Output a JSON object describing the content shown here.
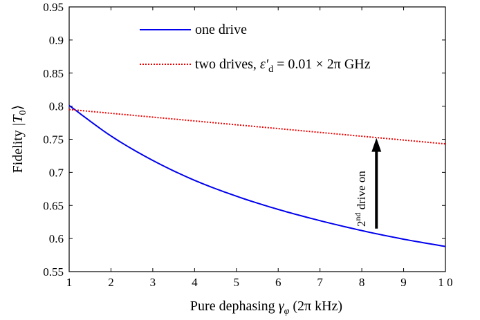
{
  "chart_data": {
    "type": "line",
    "xlabel": "Pure dephasing γ_φ (2π kHz)",
    "xlabel_parts": {
      "text": "Pure dephasing ",
      "symbol": "γ",
      "sub": "φ",
      "unit": " (2π kHz)"
    },
    "ylabel": "Fidelity |T0⟩",
    "ylabel_parts": {
      "text": "Fidelity ",
      "state": "|T",
      "sub": "0",
      "close": "⟩"
    },
    "xlim": [
      1,
      10
    ],
    "ylim": [
      0.55,
      0.95
    ],
    "xticks": [
      1,
      2,
      3,
      4,
      5,
      6,
      7,
      8,
      9,
      10
    ],
    "xtick_labels": [
      "1",
      "2",
      "3",
      "4",
      "5",
      "6",
      "7",
      "8",
      "9",
      "1 0"
    ],
    "yticks": [
      0.55,
      0.6,
      0.65,
      0.7,
      0.75,
      0.8,
      0.85,
      0.9,
      0.95
    ],
    "ytick_labels": [
      "0.55",
      "0.6",
      "0.65",
      "0.7",
      "0.75",
      "0.8",
      "0.85",
      "0.9",
      "0.95"
    ],
    "grid": false,
    "legend_position": "top-right",
    "series": [
      {
        "name": "one drive",
        "color": "#0000ee",
        "style": "solid",
        "x": [
          1,
          2,
          3,
          4,
          5,
          6,
          7,
          8,
          9,
          10
        ],
        "y": [
          0.801,
          0.755,
          0.718,
          0.688,
          0.664,
          0.644,
          0.627,
          0.612,
          0.599,
          0.588
        ]
      },
      {
        "name": "two drives, ε′d = 0.01 × 2π GHz",
        "name_parts": {
          "text": "two drives, ",
          "symbol": "ε′",
          "sub": "d",
          "rest": " = 0.01 × 2π GHz"
        },
        "color": "#ee0000",
        "style": "dotted",
        "x": [
          1,
          10
        ],
        "y": [
          0.795,
          0.743
        ]
      }
    ],
    "annotation": {
      "text": "2nd drive on",
      "parts": {
        "base": "2",
        "sup": "nd",
        "rest": " drive on"
      },
      "arrow": {
        "x": 8.35,
        "y_from": 0.615,
        "y_to": 0.752
      }
    }
  }
}
